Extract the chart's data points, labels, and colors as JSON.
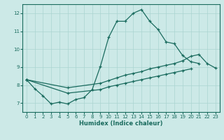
{
  "xlabel": "Humidex (Indice chaleur)",
  "xlim": [
    -0.5,
    23.5
  ],
  "ylim": [
    6.5,
    12.5
  ],
  "yticks": [
    7,
    8,
    9,
    10,
    11,
    12
  ],
  "xticks": [
    0,
    1,
    2,
    3,
    4,
    5,
    6,
    7,
    8,
    9,
    10,
    11,
    12,
    13,
    14,
    15,
    16,
    17,
    18,
    19,
    20,
    21,
    22,
    23
  ],
  "background_color": "#cce9e7",
  "grid_color": "#aad4d1",
  "line_color": "#1a6b5e",
  "line1_x": [
    0,
    1,
    2,
    3,
    4,
    5,
    6,
    7,
    8,
    9,
    10,
    11,
    12,
    13,
    14,
    15,
    16,
    17,
    18,
    19,
    20,
    21,
    22,
    23
  ],
  "line1_y": [
    8.3,
    7.8,
    7.4,
    6.95,
    7.05,
    6.95,
    7.2,
    7.3,
    7.75,
    9.05,
    10.65,
    11.55,
    11.55,
    12.0,
    12.2,
    11.55,
    11.1,
    10.4,
    10.3,
    9.65,
    9.3,
    9.2,
    null,
    null
  ],
  "line2_x": [
    0,
    5,
    9,
    10,
    11,
    12,
    13,
    14,
    15,
    16,
    17,
    18,
    19,
    20,
    21,
    22,
    23
  ],
  "line2_y": [
    8.3,
    7.85,
    8.1,
    8.25,
    8.4,
    8.55,
    8.65,
    8.75,
    8.9,
    9.0,
    9.1,
    9.2,
    9.35,
    9.6,
    9.7,
    9.2,
    8.95
  ],
  "line3_x": [
    0,
    5,
    9,
    10,
    11,
    12,
    13,
    14,
    15,
    16,
    17,
    18,
    19,
    20,
    21,
    22,
    23
  ],
  "line3_y": [
    8.3,
    7.55,
    7.75,
    7.9,
    8.0,
    8.1,
    8.2,
    8.3,
    8.4,
    8.5,
    8.6,
    8.7,
    8.8,
    8.9,
    null,
    null,
    null
  ]
}
